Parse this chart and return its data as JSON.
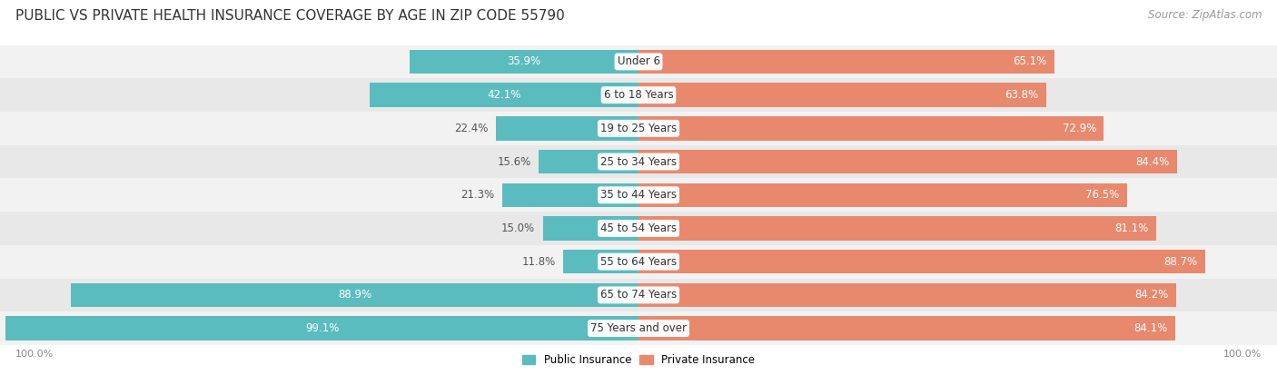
{
  "title": "PUBLIC VS PRIVATE HEALTH INSURANCE COVERAGE BY AGE IN ZIP CODE 55790",
  "source": "Source: ZipAtlas.com",
  "categories": [
    "Under 6",
    "6 to 18 Years",
    "19 to 25 Years",
    "25 to 34 Years",
    "35 to 44 Years",
    "45 to 54 Years",
    "55 to 64 Years",
    "65 to 74 Years",
    "75 Years and over"
  ],
  "public_values": [
    35.9,
    42.1,
    22.4,
    15.6,
    21.3,
    15.0,
    11.8,
    88.9,
    99.1
  ],
  "private_values": [
    65.1,
    63.8,
    72.9,
    84.4,
    76.5,
    81.1,
    88.7,
    84.2,
    84.1
  ],
  "public_color": "#5bbcbf",
  "private_color": "#e8896e",
  "row_bg_light": "#f2f2f2",
  "row_bg_dark": "#e8e8e8",
  "label_color_dark": "#555555",
  "label_color_white": "#ffffff",
  "legend_public": "Public Insurance",
  "legend_private": "Private Insurance",
  "title_fontsize": 11,
  "label_fontsize": 8.5,
  "category_fontsize": 8.5,
  "source_fontsize": 8.5,
  "private_label_threshold": 30,
  "public_label_threshold": 30
}
